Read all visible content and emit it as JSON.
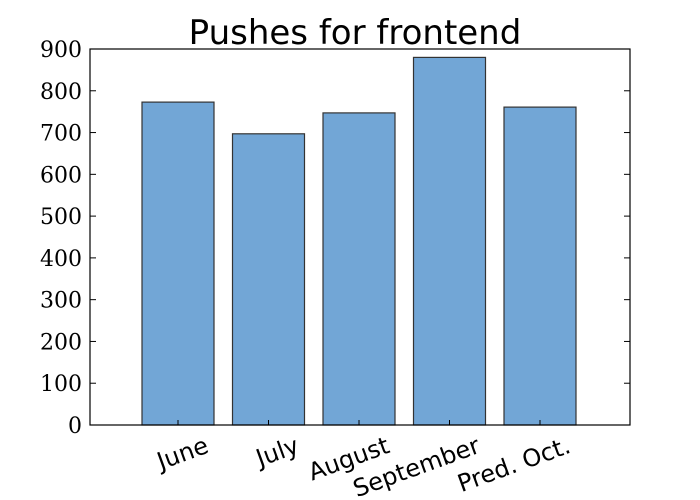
{
  "chart_data": {
    "type": "bar",
    "title": "Pushes for frontend",
    "xlabel": "",
    "ylabel": "",
    "categories": [
      "June",
      "July",
      "August",
      "September",
      "Pred. Oct."
    ],
    "values": [
      773,
      697,
      747,
      880,
      761
    ],
    "ylim": [
      0,
      900
    ],
    "yticks": [
      0,
      100,
      200,
      300,
      400,
      500,
      600,
      700,
      800,
      900
    ],
    "xtick_rotation_deg": 20,
    "grid": false,
    "legend": "none",
    "colors": {
      "bar_fill": "#72a6d6",
      "bar_edge": "#333333",
      "axis": "#000000",
      "background": "#ffffff"
    }
  }
}
